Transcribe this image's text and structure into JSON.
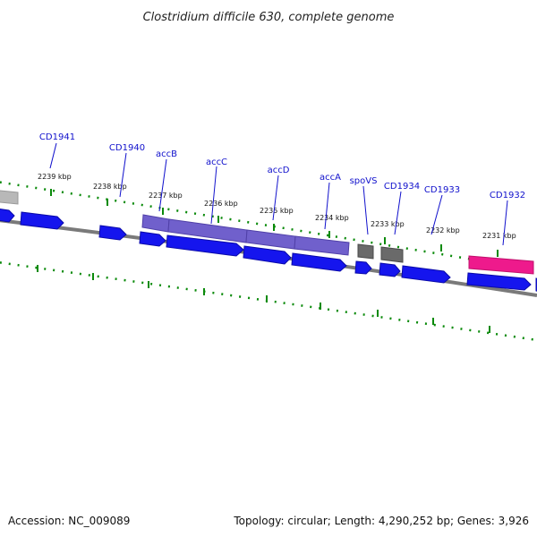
{
  "title": "Clostridium difficile 630, complete genome",
  "footer": {
    "accession": "Accession: NC_009089",
    "summary": "Topology: circular; Length: 4,290,252 bp; Genes: 3,926"
  },
  "colors": {
    "background": "#ffffff",
    "backbone": "#7a7a7a",
    "forward_gene": "#1515ee",
    "acc_operon": "#7060cc",
    "grey_feature": "#6a6a6a",
    "light_grey_feature": "#b8b8b8",
    "pink_feature": "#ee1a8c",
    "tick": "#0a8a0a",
    "label": "#1010cc"
  },
  "scale_ticks": [
    {
      "label": "2239 kbp"
    },
    {
      "label": "2238 kbp"
    },
    {
      "label": "2237 kbp"
    },
    {
      "label": "2236 kbp"
    },
    {
      "label": "2235 kbp"
    },
    {
      "label": "2234 kbp"
    },
    {
      "label": "2233 kbp"
    },
    {
      "label": "2232 kbp"
    },
    {
      "label": "2231 kbp"
    }
  ],
  "gene_labels": [
    {
      "name": "CD1941"
    },
    {
      "name": "CD1940"
    },
    {
      "name": "accB"
    },
    {
      "name": "accC"
    },
    {
      "name": "accD"
    },
    {
      "name": "accA"
    },
    {
      "name": "spoVS"
    },
    {
      "name": "CD1934"
    },
    {
      "name": "CD1933"
    },
    {
      "name": "CD1932"
    }
  ]
}
